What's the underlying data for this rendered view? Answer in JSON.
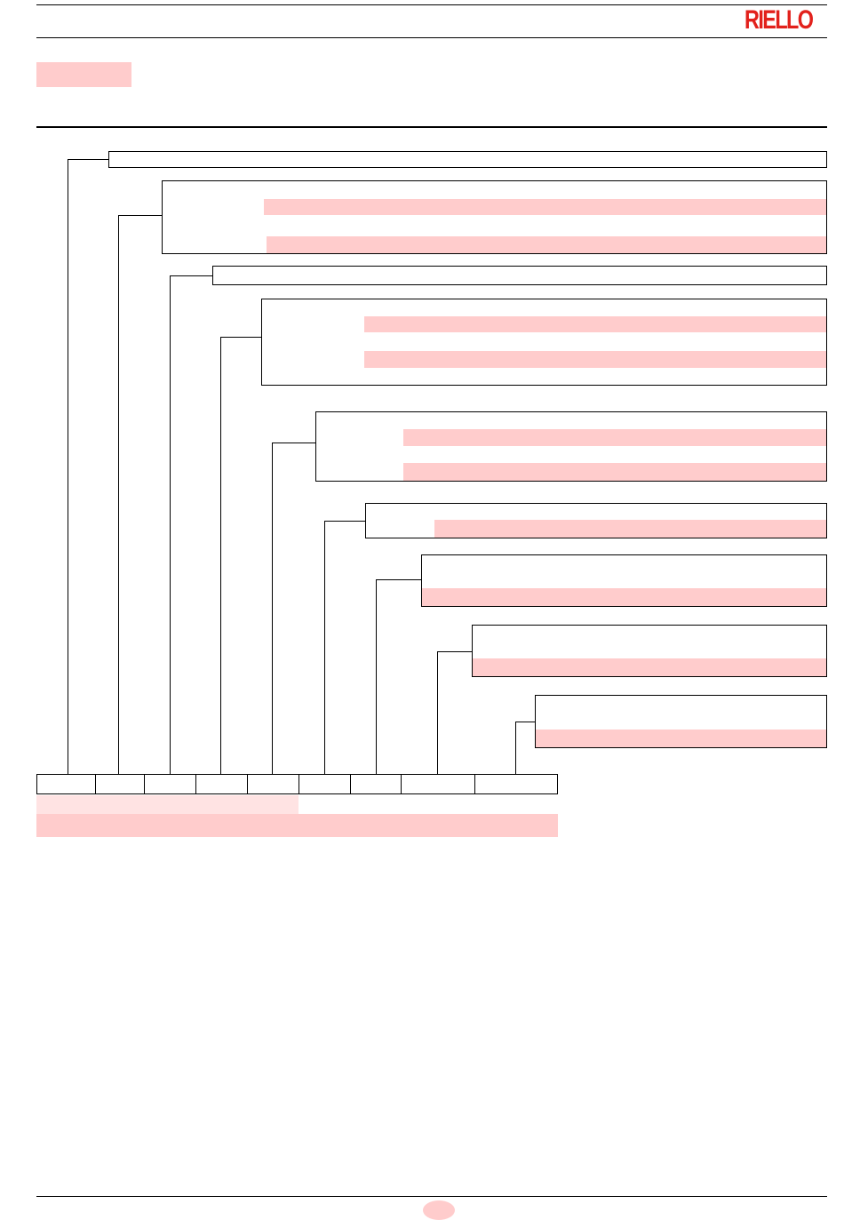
{
  "header": {
    "brand": "RIELLO"
  },
  "colors": {
    "brand_red": "#e2211c",
    "highlight_pink": "#ffcccc",
    "highlight_pink_light": "#ffe3e3",
    "line": "#000000"
  },
  "section_label": "",
  "designation_boxes": [
    {
      "id": "1",
      "title": "",
      "lines": []
    },
    {
      "id": "2",
      "title": "",
      "lines": [
        "",
        ""
      ]
    },
    {
      "id": "3",
      "title": "",
      "lines": []
    },
    {
      "id": "4",
      "title": "",
      "lines": [
        "",
        ""
      ]
    },
    {
      "id": "5",
      "title": "",
      "lines": [
        "",
        ""
      ]
    },
    {
      "id": "6",
      "title": "",
      "lines": [
        ""
      ]
    },
    {
      "id": "7",
      "title": "",
      "lines": [
        ""
      ]
    },
    {
      "id": "8",
      "title": "",
      "lines": [
        ""
      ]
    },
    {
      "id": "9",
      "title": "",
      "lines": [
        ""
      ]
    }
  ],
  "code_cells": [
    "",
    "",
    "",
    "",
    "",
    "",
    "",
    "",
    ""
  ],
  "code_notes": [
    "",
    ""
  ],
  "footer": {
    "page_number": ""
  }
}
